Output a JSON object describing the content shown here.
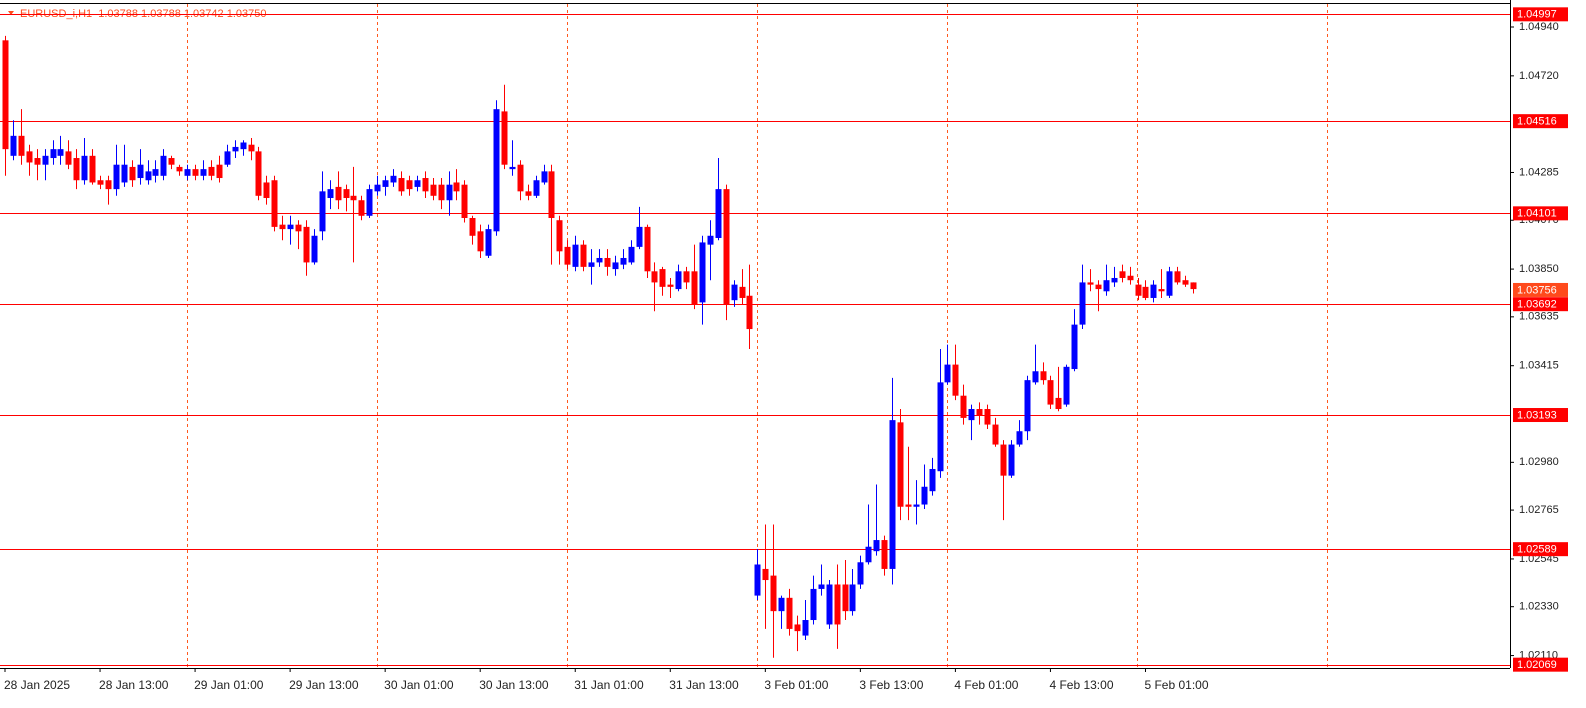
{
  "chart_data": {
    "type": "candlestick",
    "title": "EURUSD_i,H1  1.03788 1.03788 1.03742 1.03750",
    "up_color": "#0000ff",
    "down_color": "#ff0000",
    "level_color": "#ff0000",
    "bid_color": "#ff4a1c",
    "separator_color": "#ff5a1f",
    "x": [
      "28 Jan 2025",
      null,
      null,
      null,
      null,
      null,
      null,
      null,
      null,
      null,
      null,
      null,
      "28 Jan 13:00",
      null,
      null,
      null,
      null,
      null,
      null,
      null,
      null,
      null,
      null,
      null,
      "29 Jan 01:00",
      null,
      null,
      null,
      null,
      null,
      null,
      null,
      null,
      null,
      null,
      null,
      "29 Jan 13:00",
      null,
      null,
      null,
      null,
      null,
      null,
      null,
      null,
      null,
      null,
      null,
      "30 Jan 01:00",
      null,
      null,
      null,
      null,
      null,
      null,
      null,
      null,
      null,
      null,
      null,
      "30 Jan 13:00",
      null,
      null,
      null,
      null,
      null,
      null,
      null,
      null,
      null,
      null,
      null,
      "31 Jan 01:00",
      null,
      null,
      null,
      null,
      null,
      null,
      null,
      null,
      null,
      null,
      null,
      "31 Jan 13:00",
      null,
      null,
      null,
      null,
      null,
      null,
      null,
      null,
      null,
      null,
      null,
      "3 Feb 01:00",
      null,
      null,
      null,
      null,
      null,
      null,
      null,
      null,
      null,
      null,
      null,
      "3 Feb 13:00",
      null,
      null,
      null,
      null,
      null,
      null,
      null,
      null,
      null,
      null,
      null,
      "4 Feb 01:00",
      null,
      null,
      null,
      null,
      null,
      null,
      null,
      null,
      null,
      null,
      null,
      "4 Feb 13:00",
      null,
      null,
      null,
      null,
      null,
      null,
      null,
      null,
      null,
      null,
      null,
      "5 Feb 01:00",
      null,
      null,
      null,
      null,
      null,
      null
    ],
    "open": [
      1.0488,
      1.0436,
      1.0445,
      1.0438,
      1.0435,
      1.0432,
      1.0435,
      1.0436,
      1.0438,
      1.0435,
      1.0425,
      1.0436,
      1.0425,
      1.0425,
      1.0421,
      1.0424,
      1.0431,
      1.0426,
      1.0425,
      1.0427,
      1.0427,
      1.0435,
      1.0431,
      1.0427,
      1.043,
      1.0427,
      1.0431,
      1.0432,
      1.0432,
      1.0438,
      1.0439,
      1.0441,
      1.0438,
      1.0424,
      1.0425,
      1.0405,
      1.0403,
      1.0405,
      1.0404,
      1.0388,
      1.0402,
      1.0417,
      1.0422,
      1.0421,
      1.0418,
      1.0416,
      1.0409,
      1.042,
      1.0422,
      1.0424,
      1.0426,
      1.0425,
      1.0422,
      1.0426,
      1.0423,
      1.0423,
      1.0416,
      1.0424,
      1.0423,
      1.0408,
      1.0402,
      1.0391,
      1.0402,
      1.0456,
      1.043,
      1.0432,
      1.042,
      1.0418,
      1.0424,
      1.0429,
      1.0407,
      1.0395,
      1.0386,
      1.0396,
      1.0386,
      1.0388,
      1.039,
      1.0385,
      1.0387,
      1.0388,
      1.0395,
      1.0404,
      1.0384,
      1.0385,
      1.0378,
      1.0376,
      1.0384,
      1.0384,
      1.037,
      1.0396,
      1.0399,
      1.0421,
      1.0371,
      1.0377,
      1.0373,
      1.0238,
      1.025,
      1.0247,
      1.0231,
      1.0237,
      1.0225,
      1.022,
      1.0227,
      1.0241,
      1.0225,
      1.0243,
      1.0243,
      1.0231,
      1.0243,
      1.0253,
      1.0258,
      1.0263,
      1.025,
      1.0316,
      1.0279,
      1.0278,
      1.0279,
      1.0285,
      1.0294,
      1.0334,
      1.0342,
      1.0328,
      1.0317,
      1.0322,
      1.0322,
      1.0315,
      1.0306,
      1.0292,
      1.0306,
      1.0312,
      1.0334,
      1.0339,
      1.0335,
      1.0327,
      1.0324,
      1.034,
      1.036,
      1.0379,
      1.0378,
      1.0375,
      1.0379,
      1.0384,
      1.0382,
      1.0378,
      1.0377,
      1.0372,
      1.0376,
      1.0373,
      1.0384,
      1.038,
      1.0379
    ],
    "high": [
      1.049,
      1.0452,
      1.0457,
      1.0441,
      1.0439,
      1.0439,
      1.0443,
      1.0445,
      1.0443,
      1.0439,
      1.0444,
      1.0439,
      1.0427,
      1.0427,
      1.0441,
      1.0441,
      1.0434,
      1.0439,
      1.0434,
      1.0434,
      1.0439,
      1.0436,
      1.0432,
      1.0432,
      1.0432,
      1.0434,
      1.0434,
      1.0436,
      1.0441,
      1.0443,
      1.0443,
      1.0444,
      1.044,
      1.0427,
      1.0427,
      1.0409,
      1.0409,
      1.0407,
      1.0407,
      1.0403,
      1.0429,
      1.0425,
      1.0429,
      1.0423,
      1.0431,
      1.0418,
      1.0423,
      1.0427,
      1.0427,
      1.043,
      1.0429,
      1.0427,
      1.0427,
      1.0429,
      1.0426,
      1.0426,
      1.0429,
      1.043,
      1.0425,
      1.0409,
      1.0405,
      1.0405,
      1.0461,
      1.0468,
      1.0443,
      1.0434,
      1.0423,
      1.0427,
      1.0432,
      1.0432,
      1.0409,
      1.0398,
      1.04,
      1.0398,
      1.0394,
      1.0394,
      1.0394,
      1.0391,
      1.0394,
      1.0398,
      1.0413,
      1.0405,
      1.0388,
      1.0386,
      1.0381,
      1.0387,
      1.0386,
      1.0396,
      1.04,
      1.0407,
      1.0435,
      1.0423,
      1.038,
      1.0385,
      1.0387,
      1.0259,
      1.027,
      1.027,
      1.0238,
      1.0241,
      1.0229,
      1.0236,
      1.0247,
      1.0252,
      1.0245,
      1.0252,
      1.0254,
      1.025,
      1.0256,
      1.0279,
      1.0288,
      1.0265,
      1.0336,
      1.0322,
      1.0305,
      1.029,
      1.0297,
      1.03,
      1.0349,
      1.0351,
      1.0351,
      1.0333,
      1.0324,
      1.0325,
      1.0324,
      1.0318,
      1.0308,
      1.0308,
      1.0317,
      1.0337,
      1.0351,
      1.0343,
      1.0337,
      1.0341,
      1.0342,
      1.0367,
      1.0387,
      1.0385,
      1.038,
      1.0387,
      1.0386,
      1.0387,
      1.0386,
      1.0381,
      1.038,
      1.038,
      1.0385,
      1.0386,
      1.0386,
      1.0382,
      1.0379
    ],
    "low": [
      1.0427,
      1.0434,
      1.0432,
      1.0427,
      1.0425,
      1.0425,
      1.0432,
      1.0432,
      1.043,
      1.0421,
      1.0423,
      1.0423,
      1.0421,
      1.0414,
      1.0418,
      1.0422,
      1.0422,
      1.0423,
      1.0423,
      1.0424,
      1.0425,
      1.043,
      1.0427,
      1.0425,
      1.0425,
      1.0425,
      1.0425,
      1.0424,
      1.0431,
      1.0435,
      1.0436,
      1.0434,
      1.0416,
      1.0414,
      1.0402,
      1.0398,
      1.0396,
      1.0394,
      1.0382,
      1.0387,
      1.0398,
      1.0412,
      1.0412,
      1.0411,
      1.0388,
      1.0407,
      1.0408,
      1.0418,
      1.0418,
      1.0422,
      1.0418,
      1.0418,
      1.042,
      1.0417,
      1.0416,
      1.0412,
      1.0409,
      1.0416,
      1.0406,
      1.0396,
      1.039,
      1.039,
      1.04,
      1.043,
      1.0427,
      1.0416,
      1.0416,
      1.0417,
      1.0423,
      1.0387,
      1.0387,
      1.0385,
      1.0384,
      1.0384,
      1.0378,
      1.0386,
      1.0382,
      1.0382,
      1.0385,
      1.0387,
      1.0394,
      1.0381,
      1.0366,
      1.0373,
      1.0372,
      1.0375,
      1.0376,
      1.0367,
      1.036,
      1.038,
      1.0398,
      1.0362,
      1.0368,
      1.0369,
      1.0349,
      1.0236,
      1.0223,
      1.021,
      1.0223,
      1.022,
      1.0213,
      1.0218,
      1.0225,
      1.0238,
      1.0223,
      1.0214,
      1.0227,
      1.0229,
      1.0241,
      1.0252,
      1.0256,
      1.0247,
      1.0243,
      1.0272,
      1.0272,
      1.027,
      1.0277,
      1.0283,
      1.0291,
      1.0333,
      1.0326,
      1.0315,
      1.0308,
      1.0315,
      1.0313,
      1.0305,
      1.0272,
      1.0291,
      1.0305,
      1.0308,
      1.0333,
      1.0333,
      1.0322,
      1.0321,
      1.0323,
      1.0339,
      1.0358,
      1.0375,
      1.0366,
      1.0373,
      1.0377,
      1.0379,
      1.0378,
      1.0371,
      1.0371,
      1.037,
      1.0372,
      1.0372,
      1.0378,
      1.0377,
      1.0374
    ],
    "close": [
      1.0439,
      1.0445,
      1.0436,
      1.0433,
      1.0432,
      1.0436,
      1.0439,
      1.0439,
      1.0432,
      1.0425,
      1.0436,
      1.0424,
      1.0423,
      1.0421,
      1.0432,
      1.0432,
      1.0425,
      1.0432,
      1.0429,
      1.043,
      1.0436,
      1.0432,
      1.0429,
      1.043,
      1.0427,
      1.043,
      1.0427,
      1.0426,
      1.0438,
      1.044,
      1.0442,
      1.0438,
      1.0418,
      1.0417,
      1.0404,
      1.0403,
      1.0405,
      1.0402,
      1.0388,
      1.04,
      1.042,
      1.0421,
      1.0416,
      1.0417,
      1.0416,
      1.0409,
      1.0421,
      1.0423,
      1.0425,
      1.0427,
      1.042,
      1.0421,
      1.0425,
      1.042,
      1.0418,
      1.0416,
      1.0423,
      1.042,
      1.0408,
      1.04,
      1.0393,
      1.0403,
      1.0457,
      1.0432,
      1.0431,
      1.042,
      1.0418,
      1.0425,
      1.0429,
      1.0408,
      1.0393,
      1.0387,
      1.0396,
      1.0386,
      1.0388,
      1.039,
      1.0386,
      1.0388,
      1.039,
      1.0395,
      1.0404,
      1.0384,
      1.0379,
      1.0377,
      1.0377,
      1.0384,
      1.0379,
      1.0369,
      1.0397,
      1.04,
      1.0421,
      1.0369,
      1.0378,
      1.0372,
      1.0358,
      1.0252,
      1.0245,
      1.0231,
      1.0237,
      1.0223,
      1.0222,
      1.0227,
      1.0241,
      1.0243,
      1.0243,
      1.0225,
      1.0231,
      1.0243,
      1.0253,
      1.026,
      1.0263,
      1.025,
      1.0317,
      1.0278,
      1.0278,
      1.0279,
      1.0287,
      1.0295,
      1.0334,
      1.0342,
      1.0328,
      1.0318,
      1.0322,
      1.0319,
      1.0315,
      1.0306,
      1.0292,
      1.0306,
      1.0312,
      1.0335,
      1.0339,
      1.0335,
      1.0324,
      1.0322,
      1.0341,
      1.036,
      1.0379,
      1.0378,
      1.0376,
      1.038,
      1.0381,
      1.0381,
      1.038,
      1.0373,
      1.0372,
      1.0378,
      1.0375,
      1.0384,
      1.0379,
      1.0378,
      1.0376
    ],
    "ylim": [
      1.02054,
      1.05048
    ],
    "yticks": [
      {
        "value": 1.0494,
        "label": "1.04940"
      },
      {
        "value": 1.0472,
        "label": "1.04720"
      },
      1.04285,
      {
        "value": 1.0407,
        "label": "1.04070"
      },
      {
        "value": 1.0385,
        "label": "1.03850"
      },
      1.03635,
      1.03415,
      {
        "value": 1.0298,
        "label": "1.02980"
      },
      1.02765,
      1.02545,
      {
        "value": 1.0233,
        "label": "1.02330"
      },
      {
        "value": 1.0211,
        "label": "1.02110"
      }
    ],
    "levels": [
      1.04997,
      1.04516,
      1.04101,
      1.03692,
      1.03193,
      1.02589,
      1.02069
    ],
    "bid": 1.03756
  }
}
